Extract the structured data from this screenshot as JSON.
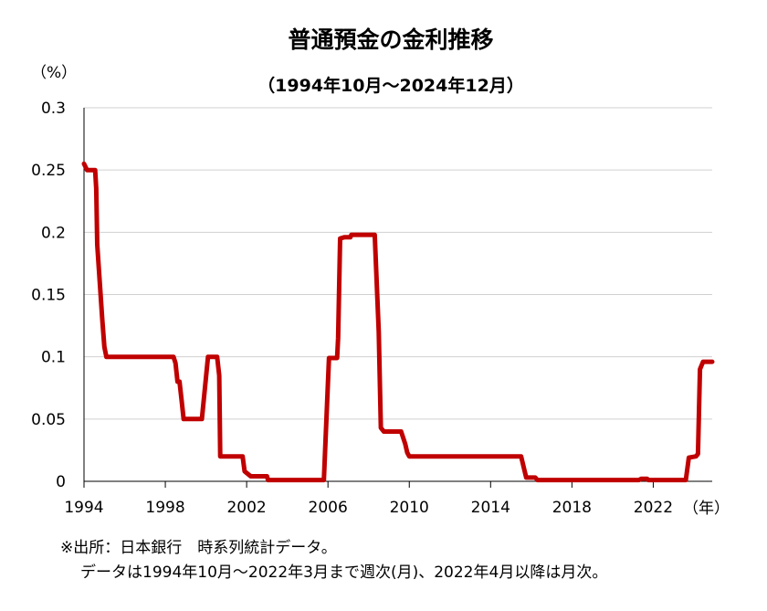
{
  "chart_data": {
    "type": "line",
    "title": "普通預金の金利推移",
    "subtitle": "（1994年10月～2024年12月）",
    "ylabel": "（%）",
    "xlabel": "（年）",
    "ylim": [
      0,
      0.3
    ],
    "xlim": [
      1994,
      2024.9
    ],
    "y_ticks": [
      "0",
      "0.05",
      "0.1",
      "0.15",
      "0.2",
      "0.25",
      "0.3"
    ],
    "y_tick_values": [
      0,
      0.05,
      0.1,
      0.15,
      0.2,
      0.25,
      0.3
    ],
    "x_ticks": [
      "1994",
      "1998",
      "2002",
      "2006",
      "2010",
      "2014",
      "2018",
      "2022"
    ],
    "x_tick_values": [
      1994,
      1998,
      2002,
      2006,
      2010,
      2014,
      2018,
      2022
    ],
    "grid": "horizontal",
    "series": [
      {
        "color": "#c00000",
        "points": [
          [
            1994.0,
            0.255
          ],
          [
            1994.15,
            0.25
          ],
          [
            1994.55,
            0.25
          ],
          [
            1994.6,
            0.235
          ],
          [
            1994.65,
            0.19
          ],
          [
            1994.9,
            0.13
          ],
          [
            1995.0,
            0.108
          ],
          [
            1995.1,
            0.1
          ],
          [
            1998.4,
            0.1
          ],
          [
            1998.5,
            0.095
          ],
          [
            1998.6,
            0.08
          ],
          [
            1998.7,
            0.08
          ],
          [
            1998.8,
            0.065
          ],
          [
            1998.9,
            0.05
          ],
          [
            1999.8,
            0.05
          ],
          [
            2000.1,
            0.1
          ],
          [
            2000.55,
            0.1
          ],
          [
            2000.65,
            0.085
          ],
          [
            2000.7,
            0.02
          ],
          [
            2001.8,
            0.02
          ],
          [
            2001.9,
            0.008
          ],
          [
            2002.2,
            0.004
          ],
          [
            2003.0,
            0.004
          ],
          [
            2003.05,
            0.001
          ],
          [
            2005.8,
            0.001
          ],
          [
            2006.05,
            0.099
          ],
          [
            2006.45,
            0.099
          ],
          [
            2006.5,
            0.115
          ],
          [
            2006.6,
            0.195
          ],
          [
            2006.8,
            0.196
          ],
          [
            2007.1,
            0.196
          ],
          [
            2007.15,
            0.198
          ],
          [
            2008.3,
            0.198
          ],
          [
            2008.5,
            0.12
          ],
          [
            2008.6,
            0.043
          ],
          [
            2008.75,
            0.04
          ],
          [
            2009.6,
            0.04
          ],
          [
            2009.8,
            0.03
          ],
          [
            2009.9,
            0.023
          ],
          [
            2010.0,
            0.02
          ],
          [
            2015.5,
            0.02
          ],
          [
            2015.65,
            0.01
          ],
          [
            2015.75,
            0.003
          ],
          [
            2016.2,
            0.003
          ],
          [
            2016.3,
            0.001
          ],
          [
            2021.3,
            0.001
          ],
          [
            2021.4,
            0.002
          ],
          [
            2021.7,
            0.002
          ],
          [
            2021.75,
            0.001
          ],
          [
            2023.6,
            0.001
          ],
          [
            2023.75,
            0.019
          ],
          [
            2024.1,
            0.02
          ],
          [
            2024.2,
            0.022
          ],
          [
            2024.3,
            0.09
          ],
          [
            2024.45,
            0.096
          ],
          [
            2024.9,
            0.096
          ]
        ]
      }
    ]
  },
  "notes": {
    "line1": "※出所：日本銀行　時系列統計データ。",
    "line2": "データは1994年10月～2022年3月まで週次(月)、2022年4月以降は月次。"
  }
}
